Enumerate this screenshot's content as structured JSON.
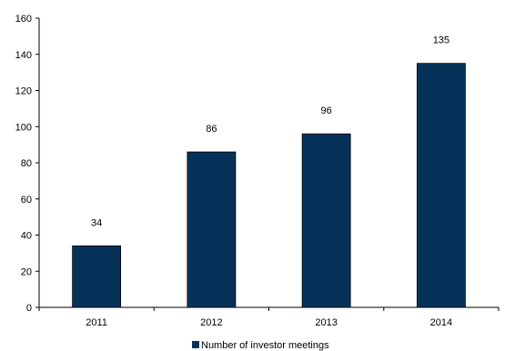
{
  "chart_data": {
    "type": "bar",
    "categories": [
      "2011",
      "2012",
      "2013",
      "2014"
    ],
    "series": [
      {
        "name": "Number of investor meetings",
        "values": [
          34,
          86,
          96,
          135
        ]
      }
    ],
    "ylim": [
      0,
      160
    ],
    "yticks": [
      "0",
      "20",
      "40",
      "60",
      "80",
      "100",
      "120",
      "140",
      "160"
    ],
    "grid": false,
    "legend_position": "bottom-center",
    "data_labels": [
      "34",
      "86",
      "96",
      "135"
    ],
    "bar_color": "#06325A"
  }
}
